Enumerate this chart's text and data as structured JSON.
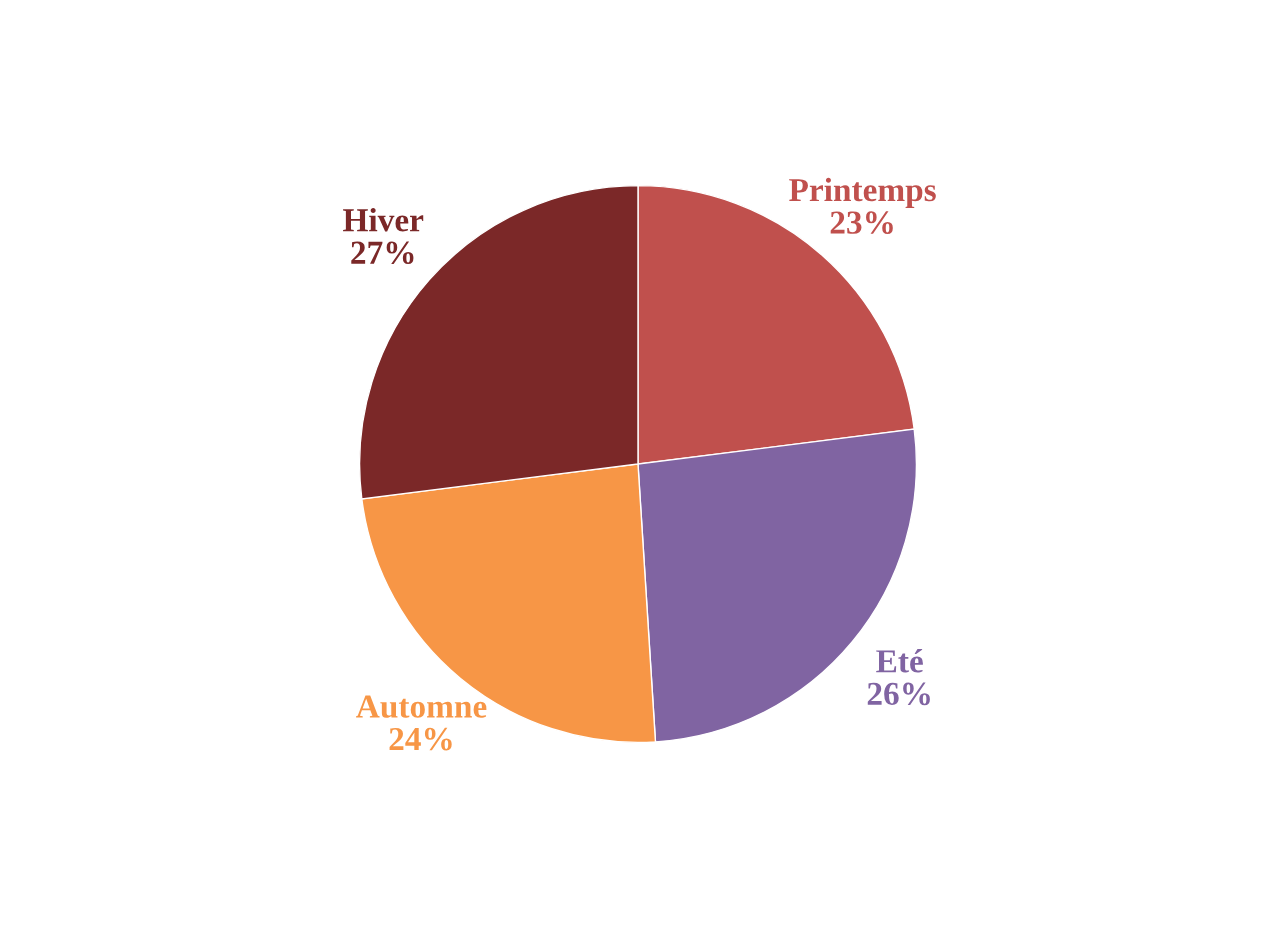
{
  "chart_data": {
    "type": "pie",
    "categories": [
      "Printemps",
      "Eté",
      "Automne",
      "Hiver"
    ],
    "values": [
      23,
      26,
      24,
      27
    ],
    "value_labels": [
      "23%",
      "26%",
      "24%",
      "27%"
    ],
    "colors": [
      "#c0504d",
      "#8064a2",
      "#f79646",
      "#7b2828"
    ],
    "legend": false
  }
}
